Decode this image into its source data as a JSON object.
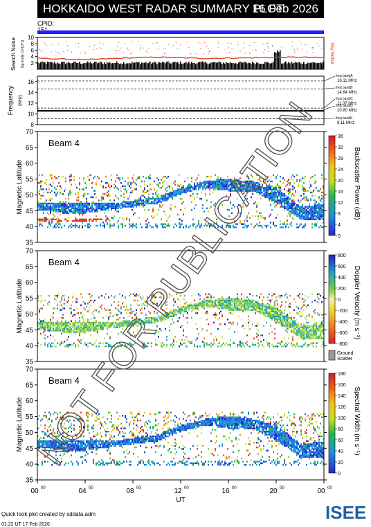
{
  "header": {
    "title": "HOKKAIDO WEST RADAR SUMMARY PLOT",
    "date": "16 Feb 2026",
    "cpid_label": "CPID:",
    "cpid_value": "151"
  },
  "panels": {
    "noise": {
      "ylabel": "Search Noise",
      "ylabel_small": "log-scale (1×10^x)",
      "right_label": "Sky Noise",
      "yticks": [
        "10",
        "8",
        "6",
        "4",
        "2"
      ]
    },
    "frequency": {
      "ylabel": "Frequency",
      "yunit": "(MHz)",
      "yticks": [
        "16",
        "14",
        "12",
        "10",
        "8"
      ],
      "bands": [
        {
          "label": "freq bandA",
          "value": "16.11 MHz"
        },
        {
          "label": "freq bandB",
          "value": "14.64 MHz"
        },
        {
          "label": "freq bandC",
          "value": "11.07 MHz"
        },
        {
          "label": "freq bandD",
          "value": "10.80 MHz"
        },
        {
          "label": "freq bandE",
          "value": "9.11 MHz"
        }
      ]
    },
    "power": {
      "beam": "Beam  4",
      "ylabel": "Magnetic Latitude",
      "cbar_label": "Backscatter Power (dB)",
      "cbar_ticks": [
        "36",
        "32",
        "28",
        "24",
        "20",
        "16",
        "12",
        "8",
        "4",
        "0"
      ],
      "yticks": [
        "70",
        "65",
        "60",
        "55",
        "50",
        "45",
        "40",
        "35"
      ]
    },
    "velocity": {
      "beam": "Beam  4",
      "ylabel": "Magnetic Latitude",
      "cbar_label": "Doppler Velocity (m s⁻¹)",
      "cbar_ticks": [
        "800",
        "600",
        "400",
        "200",
        "0",
        "-200",
        "-400",
        "-600",
        "-800"
      ],
      "ground_label_1": "Ground",
      "ground_label_2": "Scatter",
      "yticks": [
        "70",
        "65",
        "60",
        "55",
        "50",
        "45",
        "40",
        "35"
      ]
    },
    "width": {
      "beam": "Beam  4",
      "ylabel": "Magnetic Latitude",
      "cbar_label": "Spectral Width (m s⁻¹)",
      "cbar_ticks": [
        "180",
        "160",
        "140",
        "120",
        "100",
        "80",
        "60",
        "40",
        "20",
        "0"
      ],
      "yticks": [
        "70",
        "65",
        "60",
        "55",
        "50",
        "45",
        "40",
        "35"
      ]
    }
  },
  "xaxis": {
    "ticks": [
      "00",
      "04",
      "08",
      "12",
      "16",
      "20",
      "00"
    ],
    "sup": "00",
    "label": "UT"
  },
  "watermark": "NOT FOR PUBLICATION",
  "footer": {
    "line1": "Quick look plot created by sddata.adm",
    "line2": "01:22 UT 17 Feb 2026"
  },
  "logo_text": "ISEE",
  "colors": {
    "cpid_line": "#1f1fff",
    "noise_curve": "#e0401e",
    "logo_green": "#3aa545",
    "logo_blue": "#1f5fa8"
  },
  "chart_data": [
    {
      "type": "area",
      "panel": "noise",
      "ylabel": "Search Noise",
      "ylim": [
        0,
        10
      ],
      "x_ut": [
        0,
        2,
        4,
        6,
        8,
        10,
        12,
        14,
        16,
        18,
        20,
        22,
        24
      ],
      "series": [
        {
          "name": "Sky Noise",
          "values": [
            3.5,
            3.2,
            3.0,
            3.3,
            3.6,
            3.8,
            3.6,
            3.4,
            3.5,
            3.6,
            3.7,
            3.8,
            3.6
          ]
        }
      ]
    },
    {
      "type": "line",
      "panel": "frequency",
      "ylabel": "Frequency",
      "ylim": [
        8,
        17
      ],
      "x_ut": [
        0,
        24
      ],
      "series": [
        {
          "values": [
            10.8,
            10.8
          ]
        }
      ]
    },
    {
      "type": "heatmap",
      "panel": "backscatter power",
      "ylabel": "Magnetic Latitude",
      "ylim": [
        35,
        70
      ],
      "xlim_ut": [
        0,
        24
      ],
      "zlim": [
        0,
        36
      ],
      "main_echo_band_lat": [
        [
          0,
          45,
          47
        ],
        [
          2,
          44,
          47
        ],
        [
          4,
          44,
          47
        ],
        [
          6,
          45,
          47
        ],
        [
          8,
          46,
          48
        ],
        [
          10,
          47,
          49
        ],
        [
          12,
          50,
          52
        ],
        [
          14,
          52,
          54
        ],
        [
          16,
          51,
          55
        ],
        [
          18,
          51,
          54
        ],
        [
          20,
          47,
          52
        ],
        [
          22,
          42,
          46
        ],
        [
          24,
          42,
          47
        ]
      ]
    },
    {
      "type": "heatmap",
      "panel": "doppler velocity",
      "ylabel": "Magnetic Latitude",
      "ylim": [
        35,
        70
      ],
      "xlim_ut": [
        0,
        24
      ],
      "zlim": [
        -800,
        800
      ]
    },
    {
      "type": "heatmap",
      "panel": "spectral width",
      "ylabel": "Magnetic Latitude",
      "ylim": [
        35,
        70
      ],
      "xlim_ut": [
        0,
        24
      ],
      "zlim": [
        0,
        180
      ]
    }
  ]
}
